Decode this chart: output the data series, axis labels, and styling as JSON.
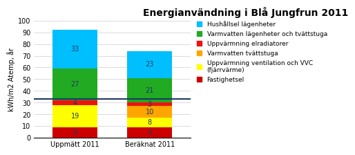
{
  "title": "Energianvändning i Blå Jungfrun 2011",
  "ylabel": "kWh/m2 Atemp, år",
  "categories": [
    "Uppmätt 2011",
    "Beräknat 2011"
  ],
  "ylim": [
    0,
    100
  ],
  "hline_y": 33,
  "segments": {
    "Fastighetsel": {
      "values": [
        9,
        9
      ],
      "color": "#CC0000"
    },
    "Uppvärmning ventilation och VVC\n(fjärrvärme)": {
      "values": [
        19,
        8
      ],
      "color": "#FFFF00"
    },
    "Varmvatten tvättstuga": {
      "values": [
        0,
        10
      ],
      "color": "#FFA500"
    },
    "Uppvärmning elradiatorer": {
      "values": [
        4,
        3
      ],
      "color": "#EE1111"
    },
    "Varmvatten lägenheter och tvättstuga": {
      "values": [
        27,
        21
      ],
      "color": "#22AA22"
    },
    "Hushållsel lägenheter": {
      "values": [
        33,
        23
      ],
      "color": "#00BFFF"
    }
  },
  "legend_order": [
    "Hushållsel lägenheter",
    "Varmvatten lägenheter och tvättstuga",
    "Uppvärmning elradiatorer",
    "Varmvatten tvättstuga",
    "Uppvärmning ventilation och VVC\n(fjärrvärme)",
    "Fastighetsel"
  ],
  "bar_width": 0.6,
  "background_color": "#FFFFFF",
  "grid_color": "#CCCCCC",
  "hline_color": "#1F3864",
  "title_fontsize": 10,
  "label_fontsize": 7,
  "tick_fontsize": 7,
  "legend_fontsize": 6.5,
  "value_fontsize": 7
}
